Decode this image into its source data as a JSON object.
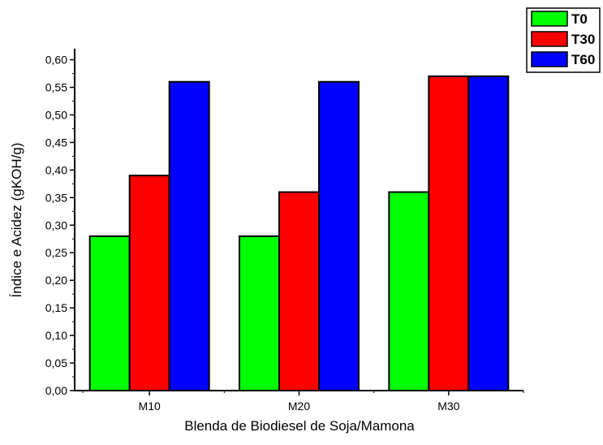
{
  "chart_data": {
    "type": "bar",
    "xlabel": "Blenda de Biodiesel de Soja/Mamona",
    "ylabel": "Índice e Acidez (gKOH/g)",
    "categories": [
      "M10",
      "M20",
      "M30"
    ],
    "series": [
      {
        "name": "T0",
        "color": "#00ff00",
        "values": [
          0.28,
          0.28,
          0.36
        ]
      },
      {
        "name": "T30",
        "color": "#ff0000",
        "values": [
          0.39,
          0.36,
          0.57
        ]
      },
      {
        "name": "T60",
        "color": "#0000ff",
        "values": [
          0.56,
          0.56,
          0.57
        ]
      }
    ],
    "ylim": [
      0,
      0.62
    ],
    "y_ticks": [
      "0,00",
      "0,05",
      "0,10",
      "0,15",
      "0,20",
      "0,25",
      "0,30",
      "0,35",
      "0,40",
      "0,45",
      "0,50",
      "0,55",
      "0,60"
    ],
    "y_minor_ticks": true,
    "grid": false,
    "legend_position": "top-right"
  }
}
